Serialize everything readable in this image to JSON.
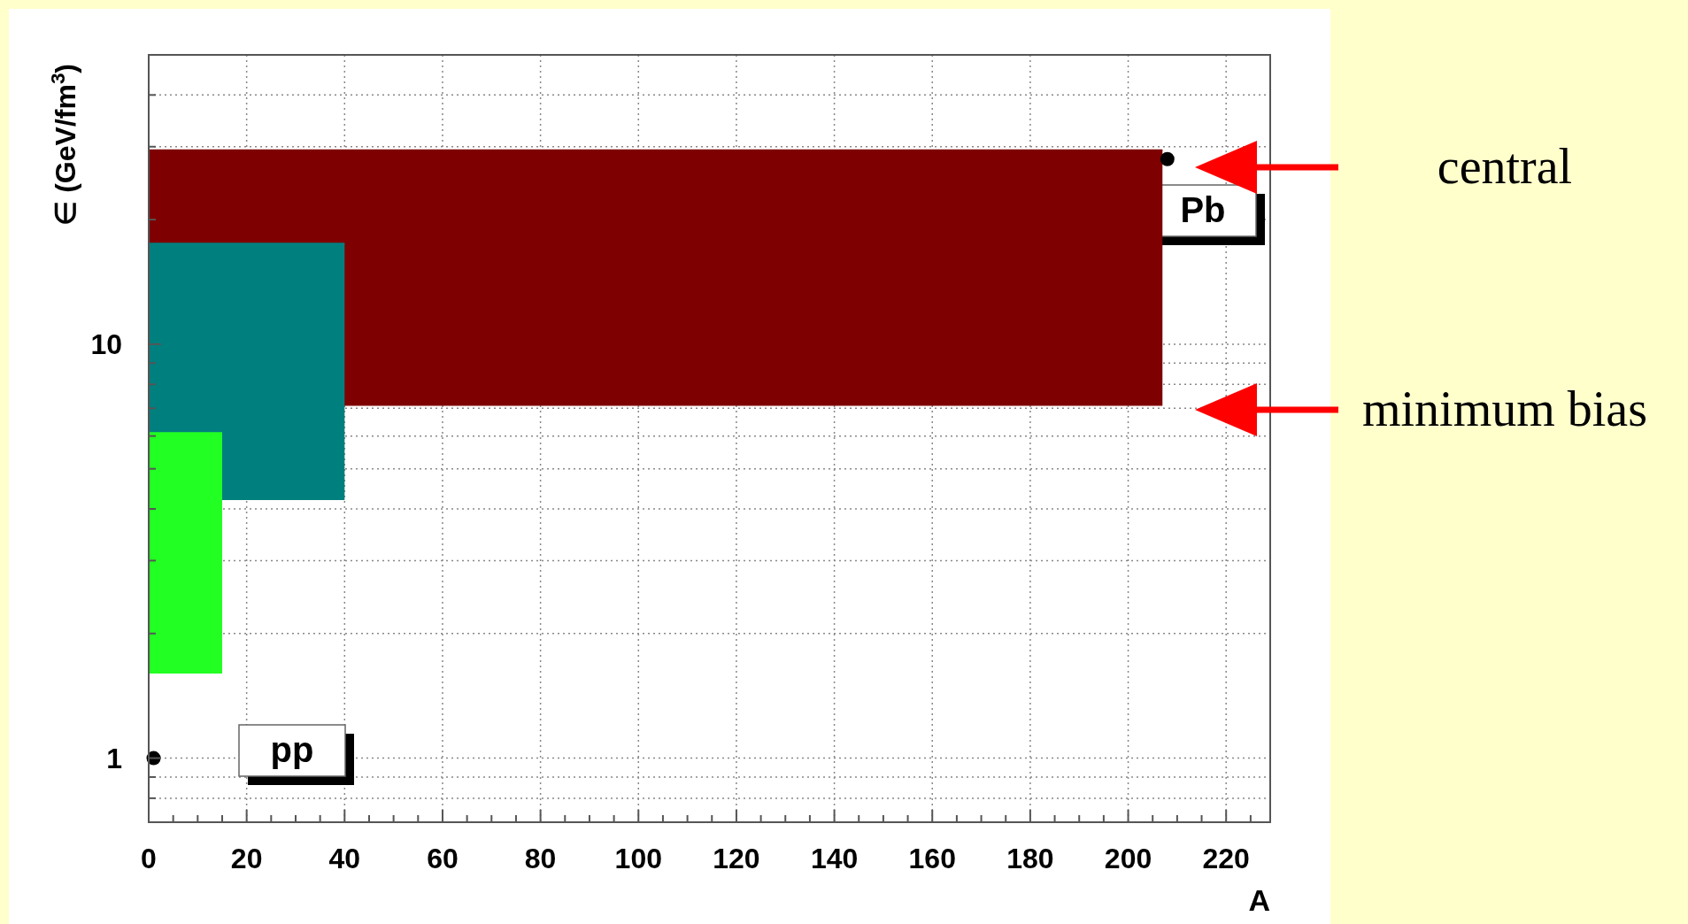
{
  "chart_data": {
    "type": "line",
    "xlabel": "A",
    "ylabel": "∈ (GeV/fm$^{3}$)",
    "xlim": [
      0,
      229
    ],
    "ylim": [
      0.7,
      50
    ],
    "log": "y",
    "grid": true,
    "xticks": [
      0,
      {
        "value": 5,
        "label": null
      },
      {
        "value": 10,
        "label": null
      },
      {
        "value": 15,
        "label": null
      },
      20,
      {
        "value": 25,
        "label": null
      },
      {
        "value": 30,
        "label": null
      },
      {
        "value": 35,
        "label": null
      },
      40,
      {
        "value": 45,
        "label": null
      },
      {
        "value": 50,
        "label": null
      },
      {
        "value": 55,
        "label": null
      },
      60,
      {
        "value": 65,
        "label": null
      },
      {
        "value": 70,
        "label": null
      },
      {
        "value": 75,
        "label": null
      },
      80,
      {
        "value": 85,
        "label": null
      },
      {
        "value": 90,
        "label": null
      },
      {
        "value": 95,
        "label": null
      },
      100,
      {
        "value": 105,
        "label": null
      },
      {
        "value": 110,
        "label": null
      },
      {
        "value": 115,
        "label": null
      },
      120,
      {
        "value": 125,
        "label": null
      },
      {
        "value": 130,
        "label": null
      },
      {
        "value": 135,
        "label": null
      },
      140,
      {
        "value": 145,
        "label": null
      },
      {
        "value": 150,
        "label": null
      },
      {
        "value": 155,
        "label": null
      },
      160,
      {
        "value": 165,
        "label": null
      },
      {
        "value": 170,
        "label": null
      },
      {
        "value": 175,
        "label": null
      },
      180,
      {
        "value": 185,
        "label": null
      },
      {
        "value": 190,
        "label": null
      },
      {
        "value": 195,
        "label": null
      },
      200,
      {
        "value": 205,
        "label": null
      },
      {
        "value": 210,
        "label": null
      },
      {
        "value": 215,
        "label": null
      },
      220,
      {
        "value": 225,
        "label": null
      }
    ],
    "yticks": [
      {
        "value": 0.8,
        "label": null
      },
      {
        "value": 0.9,
        "label": null
      },
      1,
      {
        "value": 2,
        "label": null
      },
      {
        "value": 3,
        "label": null
      },
      {
        "value": 4,
        "label": null
      },
      {
        "value": 5,
        "label": null
      },
      {
        "value": 6,
        "label": null
      },
      {
        "value": 7,
        "label": null
      },
      {
        "value": 8,
        "label": null
      },
      {
        "value": 9,
        "label": null
      },
      10,
      {
        "value": 20,
        "label": null
      },
      {
        "value": 30,
        "label": null
      },
      {
        "value": 40,
        "label": null
      }
    ],
    "series": [
      {
        "x": [
          0,
          207
        ],
        "values": [
          29.4,
          29.4
        ],
        "lower": [
          7.1,
          7.1
        ],
        "upper": [
          29.4,
          29.4
        ],
        "color": "#7f0000"
      },
      {
        "x": [
          0,
          40
        ],
        "values": [
          17.5,
          17.5
        ],
        "lower": [
          4.2,
          4.2
        ],
        "upper": [
          17.5,
          17.5
        ],
        "color": "#007f7f"
      },
      {
        "x": [
          0,
          15
        ],
        "values": [
          6.1,
          6.1
        ],
        "lower": [
          1.6,
          1.6
        ],
        "upper": [
          6.1,
          6.1
        ],
        "color": "#22ff22"
      },
      {
        "type": "scatter",
        "x": [
          1,
          208
        ],
        "values": [
          1,
          28
        ],
        "color": "#000000",
        "marker": "circle"
      }
    ],
    "annotations": [
      "pp",
      "Pb",
      "central",
      "minimum bias"
    ]
  }
}
